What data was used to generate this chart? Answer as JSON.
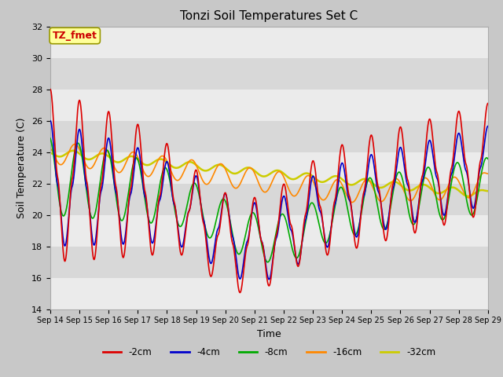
{
  "title": "Tonzi Soil Temperatures Set C",
  "xlabel": "Time",
  "ylabel": "Soil Temperature (C)",
  "ylim": [
    14,
    32
  ],
  "xlim": [
    0,
    15
  ],
  "x_tick_labels": [
    "Sep 14",
    "Sep 15",
    "Sep 16",
    "Sep 17",
    "Sep 18",
    "Sep 19",
    "Sep 20",
    "Sep 21",
    "Sep 22",
    "Sep 23",
    "Sep 24",
    "Sep 25",
    "Sep 26",
    "Sep 27",
    "Sep 28",
    "Sep 29"
  ],
  "legend_labels": [
    "-2cm",
    "-4cm",
    "-8cm",
    "-16cm",
    "-32cm"
  ],
  "legend_colors": [
    "#dd0000",
    "#0000cc",
    "#00aa00",
    "#ff8800",
    "#cccc00"
  ],
  "line_widths": [
    1.2,
    1.2,
    1.2,
    1.2,
    1.8
  ],
  "annotation_text": "TZ_fmet",
  "annotation_color": "#cc0000",
  "annotation_bg": "#ffff99",
  "title_fontsize": 11,
  "axis_fontsize": 9,
  "tick_fontsize": 8,
  "band_colors": [
    "#e8e8e8",
    "#d8d8d8"
  ]
}
